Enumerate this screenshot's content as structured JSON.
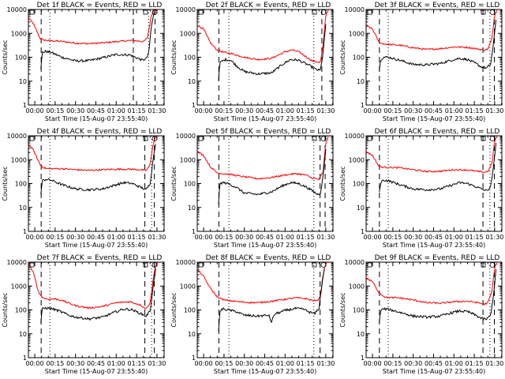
{
  "colors": {
    "events": "#000000",
    "lld": "#ff0000",
    "axes": "#000000",
    "background": "#ffffff"
  },
  "chart_data": [
    {
      "type": "line",
      "title": "Det 1f BLACK = Events, RED = LLD",
      "xlabel": "Start Time (15-Aug-07 23:55:40)",
      "ylabel": "Counts/sec",
      "xticklabels": [
        "00:00",
        "00:15",
        "00:30",
        "00:45",
        "01:00",
        "01:15",
        "01:30"
      ],
      "yticklabels": [
        "1",
        "10",
        "100",
        "1000",
        "10000"
      ],
      "yscale": "log",
      "xlim_minutes": [
        -4.7,
        95.3
      ],
      "ylim": [
        1,
        10000
      ],
      "dashed_lines_minutes": [
        4.7,
        72.6,
        88.6
      ],
      "dotted_lines_minutes": [
        11.1,
        83.9
      ],
      "series": [
        {
          "color": "red",
          "x": [
            -4.7,
            -1,
            4,
            7,
            10,
            20,
            30,
            40,
            50,
            60,
            70,
            77,
            80,
            83,
            86,
            88,
            89,
            90
          ],
          "values": [
            4500,
            2500,
            600,
            520,
            500,
            460,
            390,
            370,
            400,
            450,
            500,
            480,
            440,
            650,
            6000,
            9500,
            10000,
            10000
          ]
        },
        {
          "color": "black",
          "x": [
            4.5,
            5.5,
            8,
            12,
            20,
            30,
            40,
            50,
            60,
            70,
            75,
            79,
            82,
            84,
            86,
            88,
            89
          ],
          "values": [
            30,
            160,
            175,
            160,
            100,
            70,
            72,
            95,
            130,
            125,
            95,
            75,
            85,
            150,
            2200,
            7500,
            8500
          ]
        }
      ]
    },
    {
      "type": "line",
      "title": "Det 2f BLACK = Events, RED = LLD",
      "xlabel": "Start Time (15-Aug-07 23:55:40)",
      "ylabel": "Counts/sec",
      "xticklabels": [
        "00:00",
        "00:15",
        "00:30",
        "00:45",
        "01:00",
        "01:15",
        "01:30"
      ],
      "yticklabels": [
        "1",
        "10",
        "100",
        "1000",
        "10000"
      ],
      "yscale": "log",
      "xlim_minutes": [
        -4.7,
        95.3
      ],
      "ylim": [
        1,
        10000
      ],
      "dashed_lines_minutes": [
        11.2,
        87.1
      ],
      "dotted_lines_minutes": [
        18.6,
        81.2
      ],
      "series": [
        {
          "color": "red",
          "x": [
            -4.7,
            0,
            5,
            10,
            15,
            20,
            30,
            40,
            50,
            60,
            65,
            70,
            80,
            86,
            88,
            90,
            92
          ],
          "values": [
            2200,
            1500,
            400,
            200,
            160,
            145,
            100,
            80,
            90,
            170,
            200,
            170,
            70,
            60,
            300,
            6000,
            10000
          ]
        },
        {
          "color": "black",
          "x": [
            11,
            12,
            16,
            20,
            25,
            30,
            40,
            50,
            58,
            64,
            70,
            78,
            83,
            86,
            88,
            90
          ],
          "values": [
            12,
            60,
            80,
            75,
            40,
            25,
            20,
            22,
            50,
            80,
            75,
            45,
            30,
            28,
            150,
            2500
          ]
        }
      ]
    },
    {
      "type": "line",
      "title": "Det 3f BLACK = Events, RED = LLD",
      "xlabel": "Start Time (15-Aug-07 23:55:40)",
      "ylabel": "Counts/sec",
      "xticklabels": [
        "00:00",
        "00:15",
        "00:30",
        "00:45",
        "01:00",
        "01:15",
        "01:30"
      ],
      "yticklabels": [
        "1",
        "10",
        "100",
        "1000",
        "10000"
      ],
      "yscale": "log",
      "xlim_minutes": [
        -4.7,
        95.3
      ],
      "ylim": [
        1,
        10000
      ],
      "dashed_lines_minutes": [
        5.1,
        81.4,
        89.8
      ],
      "dotted_lines_minutes": [
        11.6,
        86.5
      ],
      "series": [
        {
          "color": "red",
          "x": [
            -4.7,
            0,
            5,
            10,
            20,
            30,
            40,
            50,
            60,
            70,
            78,
            82,
            85,
            88,
            90,
            92
          ],
          "values": [
            2200,
            1500,
            400,
            350,
            320,
            250,
            210,
            230,
            270,
            260,
            220,
            200,
            220,
            600,
            6000,
            10000
          ]
        },
        {
          "color": "black",
          "x": [
            5,
            6,
            8,
            12,
            20,
            30,
            40,
            50,
            58,
            64,
            70,
            76,
            80,
            84,
            87,
            89,
            91
          ],
          "values": [
            30,
            80,
            100,
            100,
            75,
            50,
            48,
            55,
            75,
            90,
            80,
            55,
            40,
            35,
            50,
            300,
            4000
          ]
        }
      ]
    },
    {
      "type": "line",
      "title": "Det 4f BLACK = Events, RED = LLD",
      "xlabel": "Start Time (15-Aug-07 23:55:40)",
      "ylabel": "Counts/sec",
      "xticklabels": [
        "00:00",
        "00:15",
        "00:30",
        "00:45",
        "01:00",
        "01:15",
        "01:30"
      ],
      "yticklabels": [
        "1",
        "10",
        "100",
        "1000",
        "10000"
      ],
      "yscale": "log",
      "xlim_minutes": [
        -4.7,
        95.3
      ],
      "ylim": [
        1,
        10000
      ],
      "dashed_lines_minutes": [
        4.7,
        81.1,
        88.1
      ],
      "dotted_lines_minutes": [
        11.1,
        86.1
      ],
      "series": [
        {
          "color": "red",
          "x": [
            -4.7,
            -1,
            4,
            7,
            10,
            20,
            30,
            40,
            50,
            60,
            70,
            78,
            82,
            85,
            87,
            89,
            91
          ],
          "values": [
            4500,
            2500,
            600,
            450,
            420,
            420,
            380,
            360,
            380,
            400,
            400,
            380,
            350,
            600,
            4000,
            9000,
            10000
          ]
        },
        {
          "color": "black",
          "x": [
            4.5,
            5.5,
            8,
            12,
            20,
            30,
            40,
            50,
            60,
            66,
            72,
            78,
            82,
            85,
            87,
            89
          ],
          "values": [
            35,
            130,
            150,
            140,
            90,
            60,
            55,
            60,
            90,
            110,
            100,
            70,
            55,
            100,
            900,
            5000
          ]
        }
      ]
    },
    {
      "type": "line",
      "title": "Det 5f BLACK = Events, RED = LLD",
      "xlabel": "Start Time (15-Aug-07 23:55:40)",
      "ylabel": "Counts/sec",
      "xticklabels": [
        "00:00",
        "00:15",
        "00:30",
        "00:45",
        "01:00",
        "01:15",
        "01:30"
      ],
      "yticklabels": [
        "1",
        "10",
        "100",
        "1000",
        "10000"
      ],
      "yscale": "log",
      "xlim_minutes": [
        -4.7,
        95.3
      ],
      "ylim": [
        1,
        10000
      ],
      "dashed_lines_minutes": [
        11.2,
        85.8,
        89.5
      ],
      "dotted_lines_minutes": [
        18.6,
        81.2
      ],
      "series": [
        {
          "color": "red",
          "x": [
            -4.7,
            0,
            5,
            10,
            15,
            20,
            30,
            40,
            50,
            60,
            68,
            75,
            80,
            85,
            88,
            90,
            92
          ],
          "values": [
            2200,
            1500,
            500,
            280,
            260,
            240,
            190,
            160,
            180,
            230,
            260,
            230,
            170,
            150,
            300,
            5000,
            10000
          ]
        },
        {
          "color": "black",
          "x": [
            11,
            12,
            14,
            18,
            24,
            30,
            40,
            50,
            58,
            64,
            70,
            76,
            80,
            84,
            86,
            88,
            90
          ],
          "values": [
            15,
            100,
            110,
            100,
            70,
            40,
            35,
            45,
            80,
            110,
            100,
            70,
            50,
            35,
            40,
            200,
            3000
          ]
        }
      ]
    },
    {
      "type": "line",
      "title": "Det 6f BLACK = Events, RED = LLD",
      "xlabel": "Start Time (15-Aug-07 23:55:40)",
      "ylabel": "Counts/sec",
      "xticklabels": [
        "00:00",
        "00:15",
        "00:30",
        "00:45",
        "01:00",
        "01:15",
        "01:30"
      ],
      "yticklabels": [
        "1",
        "10",
        "100",
        "1000",
        "10000"
      ],
      "yscale": "log",
      "xlim_minutes": [
        -4.7,
        95.3
      ],
      "ylim": [
        1,
        10000
      ],
      "dashed_lines_minutes": [
        5.1,
        81.4,
        89.8
      ],
      "dotted_lines_minutes": [
        11.6,
        86.5
      ],
      "series": [
        {
          "color": "red",
          "x": [
            -4.7,
            0,
            5,
            10,
            20,
            30,
            40,
            50,
            60,
            70,
            78,
            82,
            85,
            88,
            90,
            92
          ],
          "values": [
            2200,
            1500,
            500,
            480,
            460,
            380,
            320,
            330,
            380,
            370,
            320,
            300,
            320,
            700,
            6000,
            10000
          ]
        },
        {
          "color": "black",
          "x": [
            5,
            6,
            8,
            12,
            20,
            30,
            40,
            50,
            58,
            64,
            70,
            76,
            80,
            84,
            87,
            89,
            91
          ],
          "values": [
            40,
            110,
            140,
            130,
            90,
            60,
            55,
            60,
            85,
            110,
            100,
            75,
            60,
            50,
            70,
            400,
            5000
          ]
        }
      ]
    },
    {
      "type": "line",
      "title": "Det 7f BLACK = Events, RED = LLD",
      "xlabel": "Start Time (15-Aug-07 23:55:40)",
      "ylabel": "Counts/sec",
      "xticklabels": [
        "00:00",
        "00:15",
        "00:30",
        "00:45",
        "01:00",
        "01:15",
        "01:30"
      ],
      "yticklabels": [
        "1",
        "10",
        "100",
        "1000",
        "10000"
      ],
      "yscale": "log",
      "xlim_minutes": [
        -4.7,
        95.3
      ],
      "ylim": [
        1,
        10000
      ],
      "dashed_lines_minutes": [
        4.7,
        81.1,
        88.1
      ],
      "dotted_lines_minutes": [
        11.1,
        86.1
      ],
      "series": [
        {
          "color": "red",
          "x": [
            -4.7,
            -1,
            3,
            6,
            10,
            15,
            20,
            30,
            40,
            50,
            60,
            70,
            78,
            82,
            85,
            87,
            89,
            91
          ],
          "values": [
            9000,
            3500,
            500,
            320,
            280,
            290,
            250,
            150,
            120,
            140,
            200,
            220,
            160,
            110,
            200,
            1500,
            8000,
            10000
          ]
        },
        {
          "color": "black",
          "x": [
            4.5,
            5.5,
            8,
            12,
            18,
            25,
            30,
            40,
            50,
            60,
            66,
            72,
            78,
            82,
            85,
            87,
            89
          ],
          "values": [
            30,
            110,
            120,
            115,
            90,
            60,
            50,
            42,
            50,
            85,
            110,
            100,
            70,
            55,
            90,
            800,
            5000
          ]
        }
      ]
    },
    {
      "type": "line",
      "title": "Det 8f BLACK = Events, RED = LLD",
      "xlabel": "Start Time (15-Aug-07 23:55:40)",
      "ylabel": "Counts/sec",
      "xticklabels": [
        "00:00",
        "00:15",
        "00:30",
        "00:45",
        "01:00",
        "01:15",
        "01:30"
      ],
      "yticklabels": [
        "1",
        "10",
        "100",
        "1000",
        "10000"
      ],
      "yscale": "log",
      "xlim_minutes": [
        -4.7,
        95.3
      ],
      "ylim": [
        1,
        10000
      ],
      "dashed_lines_minutes": [
        11.2,
        85.8
      ],
      "dotted_lines_minutes": [
        18.6,
        81.2
      ],
      "series": [
        {
          "color": "red",
          "x": [
            -4.7,
            0,
            5,
            10,
            15,
            20,
            30,
            40,
            50,
            60,
            68,
            75,
            80,
            84,
            86,
            88,
            90,
            92
          ],
          "values": [
            5000,
            2500,
            800,
            350,
            260,
            240,
            210,
            200,
            230,
            280,
            320,
            300,
            250,
            240,
            400,
            3000,
            9000,
            10000
          ]
        },
        {
          "color": "black",
          "x": [
            11,
            12,
            14,
            18,
            24,
            30,
            40,
            48,
            50,
            52,
            60,
            68,
            74,
            78,
            82,
            85,
            87,
            89
          ],
          "values": [
            12,
            90,
            110,
            100,
            85,
            60,
            55,
            60,
            30,
            65,
            95,
            115,
            105,
            80,
            70,
            120,
            1000,
            6000
          ]
        }
      ]
    },
    {
      "type": "line",
      "title": "Det 9f BLACK = Events, RED = LLD",
      "xlabel": "Start Time (15-Aug-07 23:55:40)",
      "ylabel": "Counts/sec",
      "xticklabels": [
        "00:00",
        "00:15",
        "00:30",
        "00:45",
        "01:00",
        "01:15",
        "01:30"
      ],
      "yticklabels": [
        "1",
        "10",
        "100",
        "1000",
        "10000"
      ],
      "yscale": "log",
      "xlim_minutes": [
        -4.7,
        95.3
      ],
      "ylim": [
        1,
        10000
      ],
      "dashed_lines_minutes": [
        5.1,
        81.4,
        89.8
      ],
      "dotted_lines_minutes": [
        11.6,
        86.5
      ],
      "series": [
        {
          "color": "red",
          "x": [
            -4.7,
            0,
            5,
            10,
            20,
            30,
            40,
            50,
            60,
            70,
            78,
            82,
            85,
            88,
            90,
            92
          ],
          "values": [
            2200,
            1500,
            500,
            330,
            320,
            260,
            200,
            190,
            220,
            230,
            200,
            170,
            200,
            600,
            6000,
            10000
          ]
        },
        {
          "color": "black",
          "x": [
            5,
            6,
            8,
            12,
            20,
            30,
            40,
            50,
            58,
            64,
            70,
            76,
            80,
            84,
            87,
            89,
            91
          ],
          "values": [
            30,
            95,
            110,
            105,
            80,
            55,
            50,
            55,
            75,
            90,
            85,
            60,
            45,
            40,
            60,
            350,
            4500
          ]
        }
      ]
    }
  ]
}
